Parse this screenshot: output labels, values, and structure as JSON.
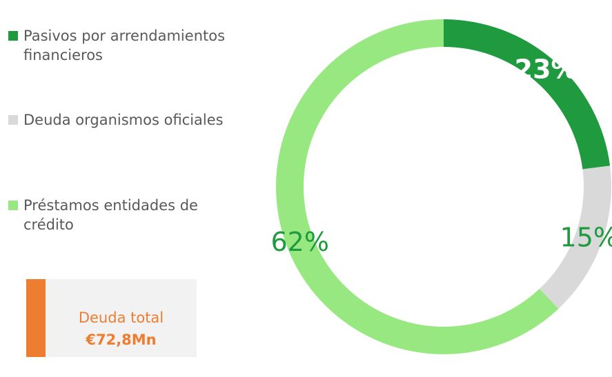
{
  "chart_data": {
    "type": "donut",
    "categories": [
      "Pasivos por arrendamientos financieros",
      "Deuda organismos oficiales",
      "Préstamos entidades de crédito"
    ],
    "values": [
      23,
      15,
      62
    ],
    "value_labels": [
      "23%",
      "15%",
      "62%"
    ],
    "colors": [
      "#1f9a3e",
      "#d9d9d9",
      "#98e882"
    ],
    "annotation": {
      "label": "Deuda total",
      "value": "€72,8Mn"
    }
  }
}
